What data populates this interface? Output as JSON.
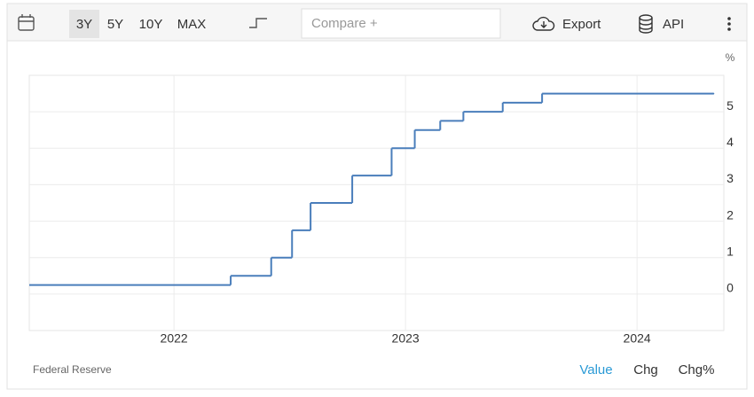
{
  "toolbar": {
    "ranges": [
      "3Y",
      "5Y",
      "10Y",
      "MAX"
    ],
    "compare": "Compare +",
    "export": "Export",
    "api": "API"
  },
  "chart_data": {
    "type": "line",
    "step": "post",
    "color": "#4a7ebb",
    "y_unit": "%",
    "x": [
      2021.375,
      2022.245,
      2022.42,
      2022.51,
      2022.59,
      2022.77,
      2022.94,
      2023.04,
      2023.15,
      2023.25,
      2023.42,
      2023.59,
      2024.33
    ],
    "values": [
      0.25,
      0.5,
      1,
      1.75,
      2.5,
      3.25,
      4,
      4.5,
      4.75,
      5,
      5.25,
      5.5,
      5.5
    ],
    "xlim": [
      2021.375,
      2024.375
    ],
    "xticks": [
      2022,
      2023,
      2024
    ],
    "ylim": [
      -1,
      6
    ],
    "yticks": [
      0,
      1,
      2,
      3,
      4,
      5
    ],
    "grid": true
  },
  "footer": {
    "source": "Federal Reserve",
    "modes": [
      "Value",
      "Chg",
      "Chg%"
    ]
  }
}
